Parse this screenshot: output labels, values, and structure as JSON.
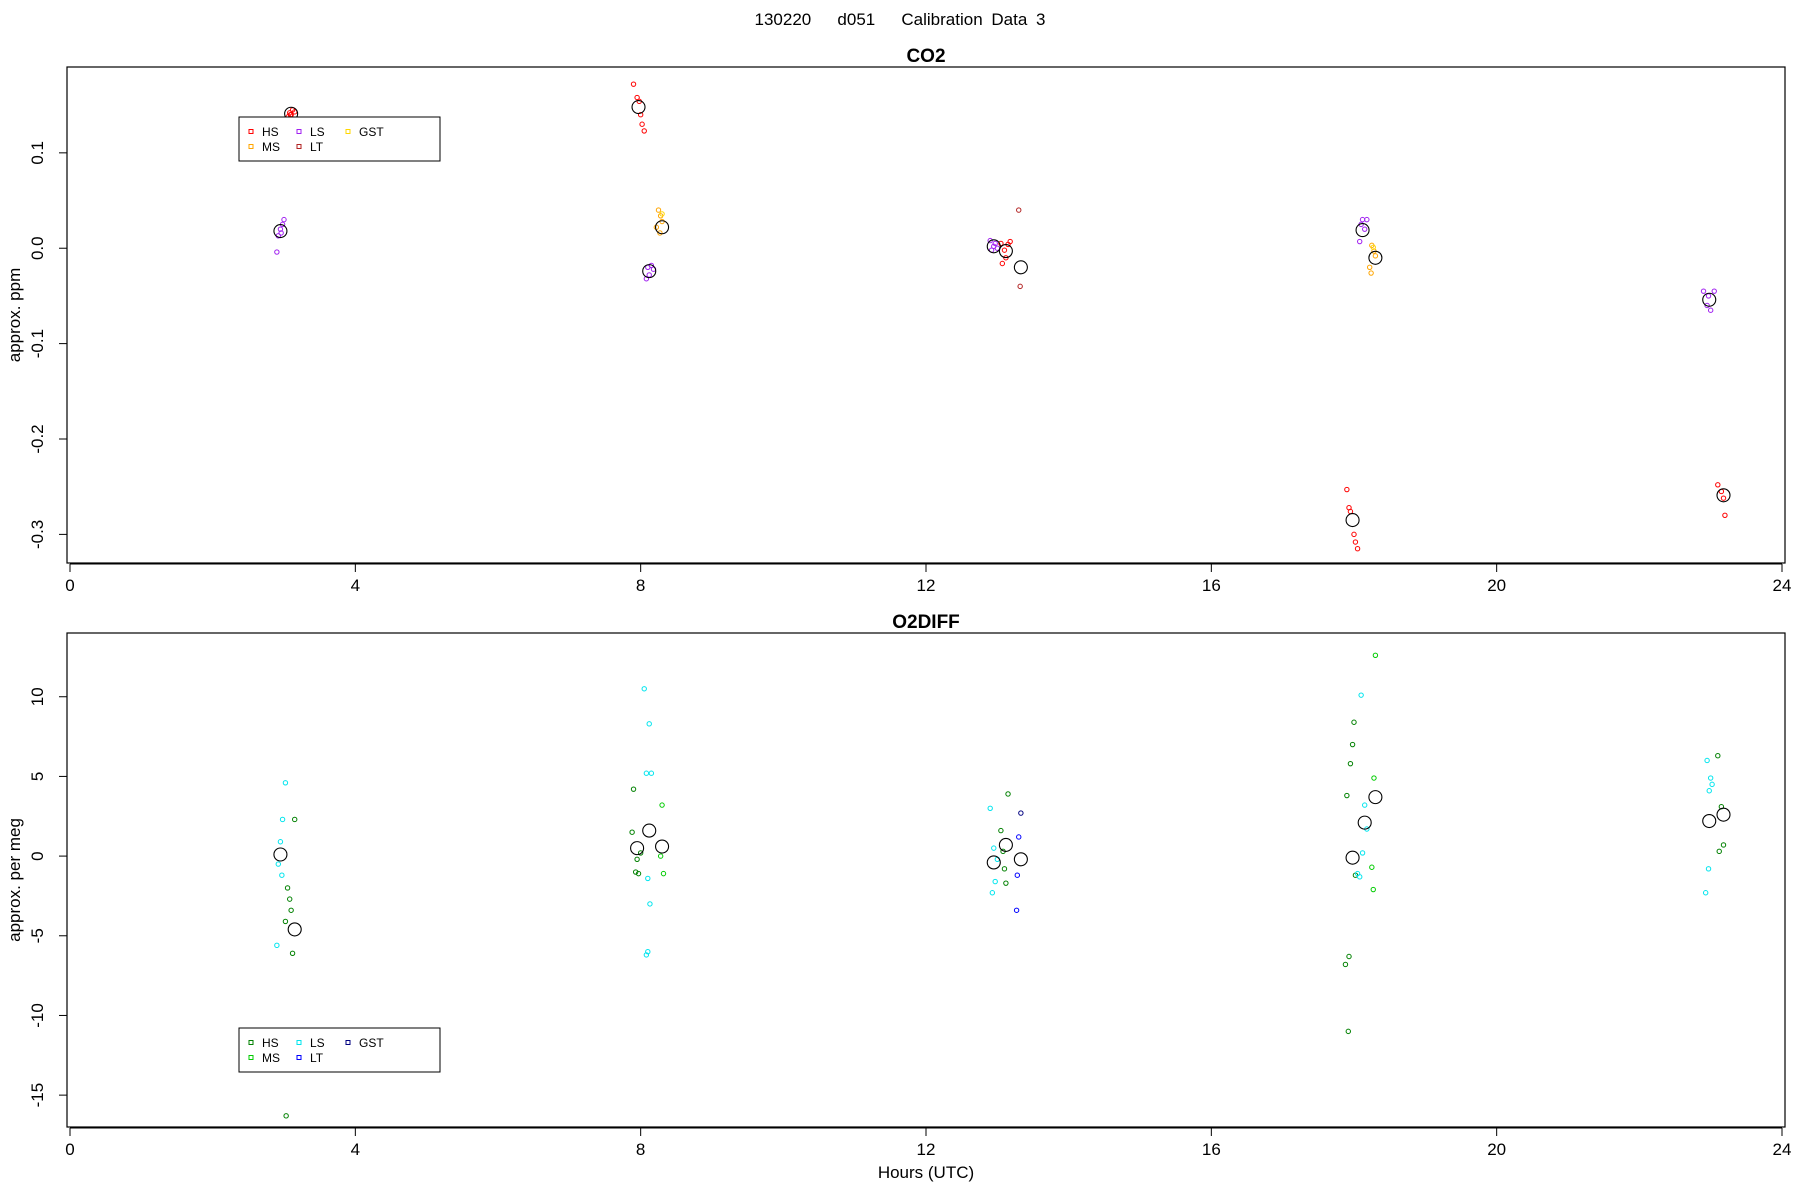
{
  "page": {
    "title": "130220   d051   Calibration Data 3"
  },
  "colors": {
    "background": "#ffffff",
    "frame": "#000000",
    "mean_marker": "#000000",
    "legend_border": "#000000"
  },
  "chart_data": [
    {
      "type": "scatter",
      "title": "CO2",
      "xlabel": "",
      "ylabel": "approx. ppm",
      "xlim": [
        0,
        24
      ],
      "ylim": [
        -0.33,
        0.19
      ],
      "x_ticks": [
        0,
        4,
        8,
        12,
        16,
        20,
        24
      ],
      "x_tick_labels": [
        "0",
        "4",
        "8",
        "12",
        "16",
        "20",
        "24"
      ],
      "y_ticks": [
        -0.3,
        -0.2,
        -0.1,
        0.0,
        0.1
      ],
      "y_tick_labels": [
        "-0.3",
        "-0.2",
        "-0.1",
        "0.0",
        "0.1"
      ],
      "grid": false,
      "legend": {
        "placement": "top-left",
        "entries": [
          {
            "label": "HS",
            "color": "#ff0000"
          },
          {
            "label": "MS",
            "color": "#ffa500"
          },
          {
            "label": "LS",
            "color": "#a020f0"
          },
          {
            "label": "LT",
            "color": "#b22222"
          },
          {
            "label": "GST",
            "color": "#ffd700"
          }
        ]
      },
      "series": [
        {
          "name": "HS",
          "color": "#ff0000",
          "points": [
            [
              3.08,
              0.142
            ],
            [
              3.1,
              0.14
            ],
            [
              3.12,
              0.145
            ],
            [
              3.06,
              0.138
            ],
            [
              3.15,
              0.143
            ],
            [
              3.09,
              0.14
            ],
            [
              7.9,
              0.172
            ],
            [
              7.95,
              0.158
            ],
            [
              7.98,
              0.154
            ],
            [
              8.0,
              0.14
            ],
            [
              8.02,
              0.13
            ],
            [
              8.05,
              0.123
            ],
            [
              13.05,
              0.005
            ],
            [
              13.1,
              -0.002
            ],
            [
              13.12,
              -0.01
            ],
            [
              13.07,
              -0.016
            ],
            [
              13.15,
              0.004
            ],
            [
              13.18,
              0.007
            ],
            [
              17.9,
              -0.253
            ],
            [
              17.93,
              -0.272
            ],
            [
              17.95,
              -0.276
            ],
            [
              18.0,
              -0.3
            ],
            [
              18.02,
              -0.308
            ],
            [
              18.05,
              -0.315
            ],
            [
              23.1,
              -0.248
            ],
            [
              23.15,
              -0.255
            ],
            [
              23.18,
              -0.262
            ],
            [
              23.2,
              -0.28
            ]
          ]
        },
        {
          "name": "MS",
          "color": "#ffa500",
          "points": [
            [
              8.25,
              0.04
            ],
            [
              8.28,
              0.034
            ],
            [
              8.3,
              0.028
            ],
            [
              8.22,
              0.022
            ],
            [
              8.27,
              0.016
            ],
            [
              18.25,
              0.003
            ],
            [
              18.28,
              -0.003
            ],
            [
              18.22,
              -0.02
            ],
            [
              18.24,
              -0.026
            ],
            [
              18.3,
              -0.008
            ]
          ]
        },
        {
          "name": "LS",
          "color": "#a020f0",
          "points": [
            [
              2.92,
              0.013
            ],
            [
              2.95,
              0.02
            ],
            [
              2.98,
              0.025
            ],
            [
              3.0,
              0.03
            ],
            [
              2.9,
              -0.004
            ],
            [
              2.96,
              0.016
            ],
            [
              8.1,
              -0.02
            ],
            [
              8.12,
              -0.028
            ],
            [
              8.15,
              -0.018
            ],
            [
              8.08,
              -0.032
            ],
            [
              8.18,
              -0.022
            ],
            [
              12.9,
              0.008
            ],
            [
              12.95,
              0.002
            ],
            [
              13.0,
              0.0
            ],
            [
              12.92,
              -0.002
            ],
            [
              12.97,
              0.005
            ],
            [
              18.1,
              0.025
            ],
            [
              18.12,
              0.03
            ],
            [
              18.15,
              0.02
            ],
            [
              18.08,
              0.007
            ],
            [
              18.18,
              0.03
            ],
            [
              22.9,
              -0.045
            ],
            [
              22.95,
              -0.06
            ],
            [
              23.0,
              -0.065
            ],
            [
              23.05,
              -0.045
            ],
            [
              22.97,
              -0.05
            ]
          ]
        },
        {
          "name": "LT",
          "color": "#b22222",
          "points": [
            [
              13.3,
              0.04
            ],
            [
              13.32,
              -0.04
            ]
          ]
        },
        {
          "name": "GST",
          "color": "#ffd700",
          "points": [
            [
              8.3,
              0.036
            ],
            [
              18.27,
              0.001
            ]
          ]
        }
      ],
      "means": [
        [
          2.95,
          0.018
        ],
        [
          3.1,
          0.141
        ],
        [
          7.97,
          0.148
        ],
        [
          8.12,
          -0.024
        ],
        [
          8.3,
          0.022
        ],
        [
          12.95,
          0.002
        ],
        [
          13.12,
          -0.003
        ],
        [
          13.33,
          -0.02
        ],
        [
          17.98,
          -0.285
        ],
        [
          18.12,
          0.019
        ],
        [
          18.3,
          -0.01
        ],
        [
          22.98,
          -0.054
        ],
        [
          23.18,
          -0.259
        ]
      ]
    },
    {
      "type": "scatter",
      "title": "O2DIFF",
      "xlabel": "Hours (UTC)",
      "ylabel": "approx. per meg",
      "xlim": [
        0,
        24
      ],
      "ylim": [
        -17,
        14
      ],
      "x_ticks": [
        0,
        4,
        8,
        12,
        16,
        20,
        24
      ],
      "x_tick_labels": [
        "0",
        "4",
        "8",
        "12",
        "16",
        "20",
        "24"
      ],
      "y_ticks": [
        -15,
        -10,
        -5,
        0,
        5,
        10
      ],
      "y_tick_labels": [
        "-15",
        "-10",
        "-5",
        "0",
        "5",
        "10"
      ],
      "grid": false,
      "legend": {
        "placement": "bottom-left",
        "entries": [
          {
            "label": "HS",
            "color": "#008000"
          },
          {
            "label": "MS",
            "color": "#00cc00"
          },
          {
            "label": "LS",
            "color": "#00e5ee"
          },
          {
            "label": "LT",
            "color": "#0000ff"
          },
          {
            "label": "GST",
            "color": "#000080"
          }
        ]
      },
      "series": [
        {
          "name": "HS",
          "color": "#008000",
          "points": [
            [
              3.05,
              -2.0
            ],
            [
              3.08,
              -2.7
            ],
            [
              3.1,
              -3.4
            ],
            [
              3.02,
              -4.1
            ],
            [
              3.12,
              -6.1
            ],
            [
              3.15,
              2.3
            ],
            [
              3.03,
              -16.3
            ],
            [
              7.9,
              4.2
            ],
            [
              7.88,
              1.5
            ],
            [
              7.95,
              -0.2
            ],
            [
              7.93,
              -1.0
            ],
            [
              7.97,
              -1.1
            ],
            [
              8.0,
              0.2
            ],
            [
              13.05,
              1.6
            ],
            [
              13.08,
              0.3
            ],
            [
              13.12,
              -1.7
            ],
            [
              13.15,
              3.9
            ],
            [
              13.1,
              -0.8
            ],
            [
              17.9,
              3.8
            ],
            [
              17.95,
              5.8
            ],
            [
              17.98,
              7.0
            ],
            [
              18.0,
              8.4
            ],
            [
              17.93,
              -6.3
            ],
            [
              17.88,
              -6.8
            ],
            [
              17.92,
              -11.0
            ],
            [
              18.02,
              -1.2
            ],
            [
              23.1,
              6.3
            ],
            [
              23.15,
              3.1
            ],
            [
              23.18,
              0.7
            ],
            [
              23.12,
              0.3
            ]
          ]
        },
        {
          "name": "MS",
          "color": "#00cc00",
          "points": [
            [
              8.3,
              3.2
            ],
            [
              8.28,
              0.0
            ],
            [
              8.32,
              -1.1
            ],
            [
              18.3,
              12.6
            ],
            [
              18.28,
              4.9
            ],
            [
              18.25,
              -0.7
            ],
            [
              18.27,
              -2.1
            ]
          ]
        },
        {
          "name": "LS",
          "color": "#00e5ee",
          "points": [
            [
              3.02,
              4.6
            ],
            [
              2.98,
              2.3
            ],
            [
              2.95,
              0.9
            ],
            [
              2.92,
              -0.5
            ],
            [
              2.97,
              -1.2
            ],
            [
              2.9,
              -5.6
            ],
            [
              8.05,
              10.5
            ],
            [
              8.12,
              8.3
            ],
            [
              8.08,
              5.2
            ],
            [
              8.15,
              5.2
            ],
            [
              8.1,
              -1.4
            ],
            [
              8.13,
              -3.0
            ],
            [
              8.1,
              -6.0
            ],
            [
              8.08,
              -6.2
            ],
            [
              12.9,
              3.0
            ],
            [
              12.95,
              0.5
            ],
            [
              13.0,
              -0.2
            ],
            [
              12.97,
              -1.6
            ],
            [
              12.93,
              -2.3
            ],
            [
              18.1,
              10.1
            ],
            [
              18.15,
              3.2
            ],
            [
              18.18,
              1.7
            ],
            [
              18.12,
              0.2
            ],
            [
              18.05,
              -1.1
            ],
            [
              18.08,
              -1.3
            ],
            [
              22.95,
              6.0
            ],
            [
              23.0,
              4.9
            ],
            [
              23.02,
              4.5
            ],
            [
              22.97,
              -0.8
            ],
            [
              22.93,
              -2.3
            ],
            [
              22.98,
              4.1
            ]
          ]
        },
        {
          "name": "LT",
          "color": "#0000ff",
          "points": [
            [
              13.3,
              1.2
            ],
            [
              13.28,
              -1.2
            ],
            [
              13.27,
              -3.4
            ]
          ]
        },
        {
          "name": "GST",
          "color": "#000080",
          "points": [
            [
              13.33,
              2.7
            ]
          ]
        }
      ],
      "means": [
        [
          2.95,
          0.1
        ],
        [
          3.15,
          -4.6
        ],
        [
          7.95,
          0.5
        ],
        [
          8.12,
          1.6
        ],
        [
          8.3,
          0.6
        ],
        [
          12.95,
          -0.4
        ],
        [
          13.12,
          0.7
        ],
        [
          13.33,
          -0.2
        ],
        [
          17.98,
          -0.1
        ],
        [
          18.15,
          2.1
        ],
        [
          18.3,
          3.7
        ],
        [
          22.98,
          2.2
        ],
        [
          23.18,
          2.6
        ]
      ]
    }
  ]
}
